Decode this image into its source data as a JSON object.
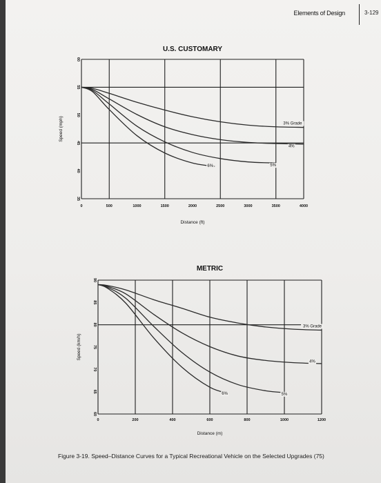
{
  "header": {
    "section": "Elements of Design",
    "page": "3-129"
  },
  "caption": "Figure 3-19. Speed–Distance Curves for a Typical Recreational Vehicle on the Selected Upgrades (75)",
  "chart_data": [
    {
      "type": "line",
      "title": "U.S. CUSTOMARY",
      "xlabel": "Distance (ft)",
      "ylabel": "Speed (mph)",
      "xlim": [
        0,
        4000
      ],
      "ylim": [
        35,
        60
      ],
      "xticks": [
        "0",
        "500",
        "1000",
        "1500",
        "2000",
        "2500",
        "3000",
        "3500",
        "4000"
      ],
      "yticks": [
        "35",
        "40",
        "45",
        "50",
        "55",
        "60"
      ],
      "grid_x": [
        0,
        500,
        1500,
        2500,
        3500,
        4000
      ],
      "grid_y": [
        35,
        45,
        55,
        60
      ],
      "series": [
        {
          "name": "3% Grade",
          "x": [
            0,
            200,
            500,
            1000,
            1500,
            2000,
            2500,
            3000,
            3500,
            4000
          ],
          "y": [
            55,
            54.8,
            53.9,
            52.3,
            50.9,
            49.7,
            48.8,
            48.2,
            47.9,
            47.8
          ],
          "label_pos": [
            3800,
            48.3
          ]
        },
        {
          "name": "4%",
          "x": [
            0,
            200,
            500,
            1000,
            1500,
            2000,
            2500,
            3000,
            3500,
            4000
          ],
          "y": [
            55,
            54.6,
            52.9,
            50.1,
            47.9,
            46.5,
            45.6,
            45.1,
            44.9,
            44.8
          ],
          "label_pos": [
            3780,
            44.2
          ]
        },
        {
          "name": "5%",
          "x": [
            0,
            200,
            500,
            1000,
            1500,
            2000,
            2500,
            3000,
            3500
          ],
          "y": [
            55,
            54.4,
            52.0,
            48.0,
            45.2,
            43.3,
            42.2,
            41.6,
            41.4
          ],
          "label_pos": [
            3450,
            40.8
          ]
        },
        {
          "name": "6%",
          "x": [
            0,
            200,
            500,
            1000,
            1500,
            2000,
            2400
          ],
          "y": [
            55,
            54.2,
            51.0,
            46.3,
            43.2,
            41.4,
            40.8
          ],
          "label_pos": [
            2320,
            40.7
          ]
        }
      ]
    },
    {
      "type": "line",
      "title": "METRIC",
      "xlabel": "Distance (m)",
      "ylabel": "Speed (km/h)",
      "xlim": [
        0,
        1200
      ],
      "ylim": [
        60,
        90
      ],
      "xticks": [
        "0",
        "200",
        "400",
        "600",
        "800",
        "1000",
        "1200"
      ],
      "yticks": [
        "60",
        "65",
        "70",
        "75",
        "80",
        "85",
        "90"
      ],
      "grid_x": [
        0,
        200,
        400,
        600,
        800,
        1000,
        1200
      ],
      "grid_y": [
        60,
        80,
        90
      ],
      "series": [
        {
          "name": "3% Grade",
          "x": [
            0,
            50,
            150,
            300,
            450,
            600,
            750,
            900,
            1050,
            1200
          ],
          "y": [
            89,
            88.8,
            87.8,
            85.6,
            83.7,
            81.7,
            80.4,
            79.5,
            79.0,
            78.8
          ],
          "label_pos": [
            1150,
            79.4
          ]
        },
        {
          "name": "4%",
          "x": [
            0,
            50,
            150,
            300,
            450,
            600,
            750,
            900,
            1050,
            1200
          ],
          "y": [
            89,
            88.6,
            86.9,
            82.3,
            78.2,
            75.1,
            73.0,
            72.0,
            71.5,
            71.3
          ],
          "label_pos": [
            1150,
            71.5
          ]
        },
        {
          "name": "5%",
          "x": [
            0,
            50,
            150,
            300,
            450,
            600,
            750,
            900,
            1000
          ],
          "y": [
            89,
            88.4,
            85.9,
            79.6,
            73.8,
            69.4,
            66.6,
            65.2,
            64.8
          ],
          "label_pos": [
            1000,
            64.2
          ]
        },
        {
          "name": "6%",
          "x": [
            0,
            50,
            150,
            300,
            450,
            600,
            700
          ],
          "y": [
            89,
            88.2,
            84.8,
            77.0,
            70.5,
            66.0,
            64.6
          ],
          "label_pos": [
            680,
            64.3
          ]
        }
      ]
    }
  ]
}
